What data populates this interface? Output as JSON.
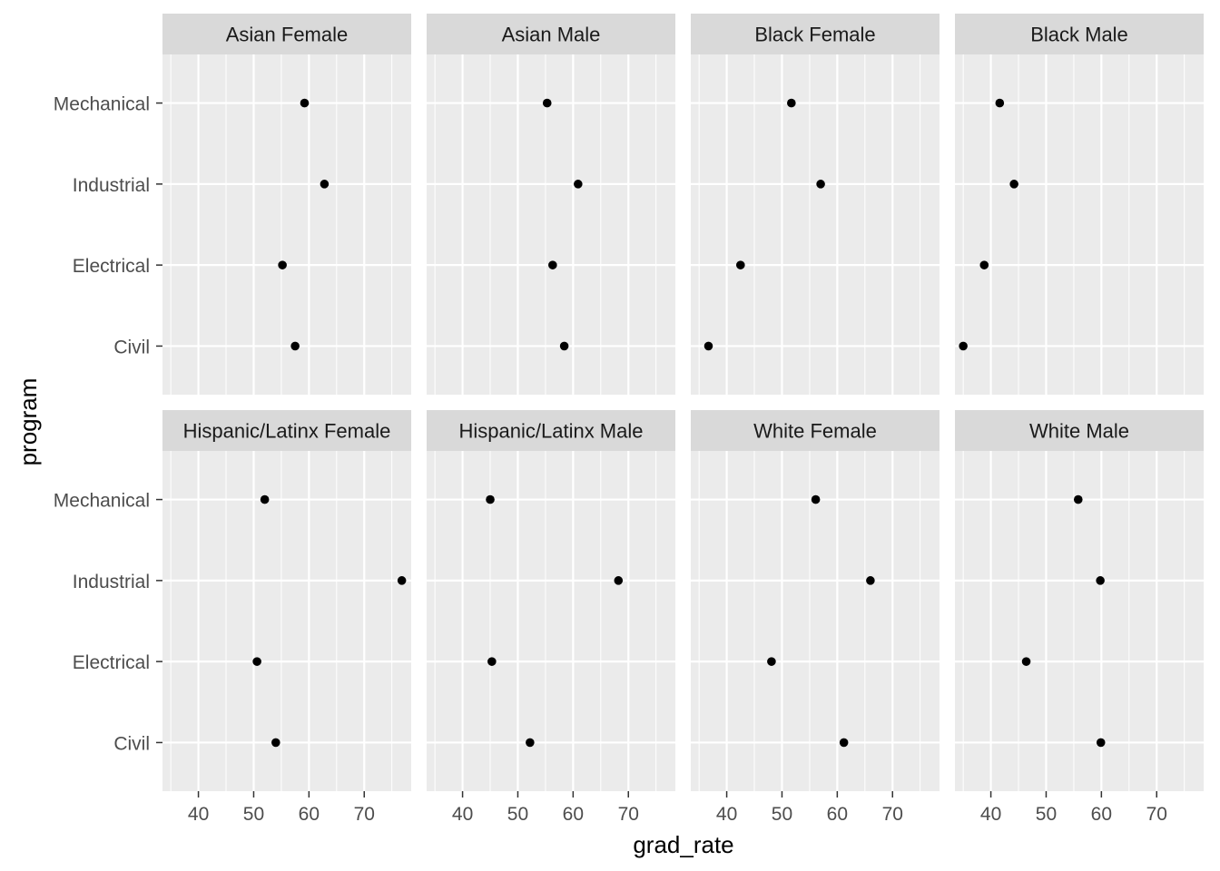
{
  "chart_data": {
    "type": "scatter",
    "xlabel": "grad_rate",
    "ylabel": "program",
    "xlim": [
      33.5,
      78.5
    ],
    "x_ticks": [
      40,
      50,
      60,
      70
    ],
    "categories": [
      "Mechanical",
      "Industrial",
      "Electrical",
      "Civil"
    ],
    "grid": true,
    "facet_rows": 2,
    "facet_cols": 4,
    "panels": [
      {
        "name": "Asian Female",
        "values": [
          59.2,
          62.8,
          55.2,
          57.5
        ]
      },
      {
        "name": "Asian Male",
        "values": [
          55.3,
          60.9,
          56.3,
          58.4
        ]
      },
      {
        "name": "Black Female",
        "values": [
          51.7,
          57.0,
          42.5,
          36.7
        ]
      },
      {
        "name": "Black Male",
        "values": [
          41.6,
          44.2,
          38.8,
          35.0
        ]
      },
      {
        "name": "Hispanic/Latinx Female",
        "values": [
          52.0,
          76.8,
          50.6,
          54.0
        ]
      },
      {
        "name": "Hispanic/Latinx Male",
        "values": [
          45.0,
          68.2,
          45.3,
          52.2
        ]
      },
      {
        "name": "White Female",
        "values": [
          56.1,
          66.0,
          48.1,
          61.2
        ]
      },
      {
        "name": "White Male",
        "values": [
          55.8,
          59.8,
          46.4,
          59.9
        ]
      }
    ],
    "colors": {
      "panel_bg": "#ebebeb",
      "strip_bg": "#d9d9d9",
      "grid": "#ffffff",
      "point": "#000000"
    }
  }
}
